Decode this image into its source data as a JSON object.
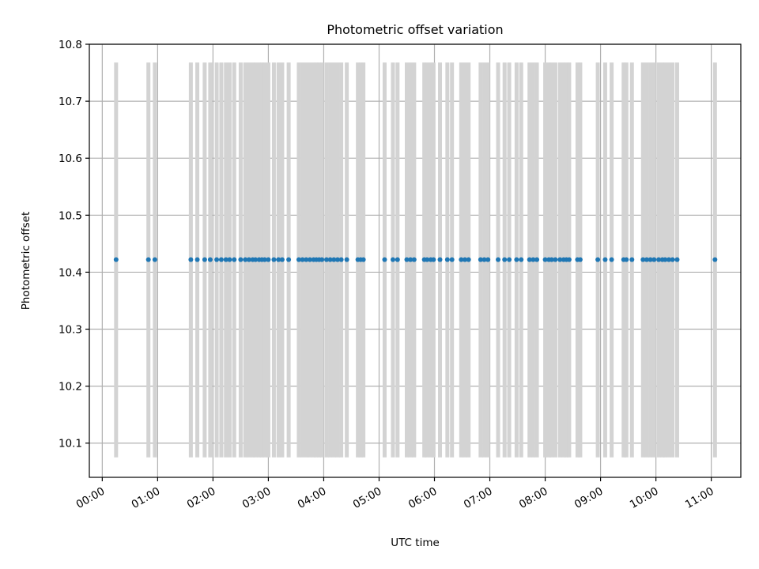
{
  "chart_data": {
    "type": "scatter",
    "title": "Photometric offset variation",
    "xlabel": "UTC time",
    "ylabel": "Photometric offset",
    "xlim": [
      "23:46",
      "11:32"
    ],
    "ylim": [
      10.04,
      10.8
    ],
    "grid": true,
    "x_ticks": [
      "00:00",
      "01:00",
      "02:00",
      "03:00",
      "04:00",
      "05:00",
      "06:00",
      "07:00",
      "08:00",
      "09:00",
      "10:00",
      "11:00"
    ],
    "y_ticks": [
      "10.1",
      "10.2",
      "10.3",
      "10.4",
      "10.5",
      "10.6",
      "10.7",
      "10.8"
    ],
    "error_bar": {
      "low": 10.075,
      "high": 10.768
    },
    "marker_color": "#1f77b4",
    "error_color": "#d3d3d3",
    "series": [
      {
        "x": [
          "00:15",
          "00:50",
          "00:57",
          "01:36",
          "01:43",
          "01:51",
          "01:57",
          "02:04",
          "02:09",
          "02:14",
          "02:18",
          "02:23",
          "02:30",
          "02:35",
          "02:39",
          "02:43",
          "02:46",
          "02:50",
          "02:53",
          "02:56",
          "03:00",
          "03:06",
          "03:11",
          "03:15",
          "03:22",
          "03:33",
          "03:37",
          "03:41",
          "03:45",
          "03:49",
          "03:52",
          "03:55",
          "03:58",
          "04:03",
          "04:07",
          "04:11",
          "04:15",
          "04:19",
          "04:25",
          "04:37",
          "04:40",
          "04:43",
          "05:06",
          "05:15",
          "05:20",
          "05:30",
          "05:34",
          "05:38",
          "05:49",
          "05:52",
          "05:56",
          "05:59",
          "06:06",
          "06:14",
          "06:19",
          "06:29",
          "06:33",
          "06:37",
          "06:50",
          "06:54",
          "06:58",
          "07:09",
          "07:16",
          "07:21",
          "07:29",
          "07:34",
          "07:43",
          "07:47",
          "07:51",
          "08:00",
          "08:04",
          "08:07",
          "08:11",
          "08:16",
          "08:20",
          "08:23",
          "08:26",
          "08:35",
          "08:38",
          "08:57",
          "09:05",
          "09:12",
          "09:25",
          "09:28",
          "09:34",
          "09:46",
          "09:50",
          "09:54",
          "09:58",
          "10:03",
          "10:07",
          "10:10",
          "10:14",
          "10:18",
          "10:23",
          "11:04"
        ],
        "y": [
          10.422,
          10.422,
          10.422,
          10.422,
          10.422,
          10.422,
          10.422,
          10.422,
          10.422,
          10.422,
          10.422,
          10.422,
          10.422,
          10.422,
          10.422,
          10.422,
          10.422,
          10.422,
          10.422,
          10.422,
          10.422,
          10.422,
          10.422,
          10.422,
          10.422,
          10.422,
          10.422,
          10.422,
          10.422,
          10.422,
          10.422,
          10.422,
          10.422,
          10.422,
          10.422,
          10.422,
          10.422,
          10.422,
          10.422,
          10.422,
          10.422,
          10.422,
          10.422,
          10.422,
          10.422,
          10.422,
          10.422,
          10.422,
          10.422,
          10.422,
          10.422,
          10.422,
          10.422,
          10.422,
          10.422,
          10.422,
          10.422,
          10.422,
          10.422,
          10.422,
          10.422,
          10.422,
          10.422,
          10.422,
          10.422,
          10.422,
          10.422,
          10.422,
          10.422,
          10.422,
          10.422,
          10.422,
          10.422,
          10.422,
          10.422,
          10.422,
          10.422,
          10.422,
          10.422,
          10.422,
          10.422,
          10.422,
          10.422,
          10.422,
          10.422,
          10.422,
          10.422,
          10.422,
          10.422,
          10.422,
          10.422,
          10.422,
          10.422,
          10.422,
          10.422,
          10.422
        ]
      }
    ]
  }
}
